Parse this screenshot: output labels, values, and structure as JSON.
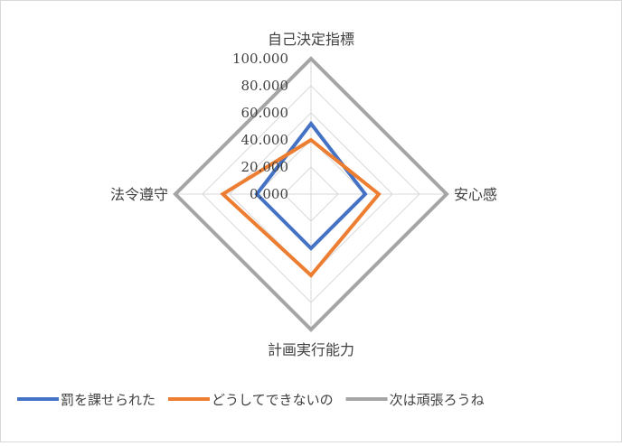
{
  "chart_data": {
    "type": "radar",
    "categories": [
      "自己決定指標",
      "安心感",
      "計画実行能力",
      "法令遵守"
    ],
    "r_ticks": [
      "100.000",
      "80.000",
      "60.000",
      "40.000",
      "20.000",
      "0.000"
    ],
    "rlim": [
      0,
      100
    ],
    "grid": true,
    "legend_position": "bottom",
    "series": [
      {
        "name": "罰を課せられた",
        "values": [
          52,
          40,
          40,
          40
        ],
        "color": "#4472c4"
      },
      {
        "name": "どうしてできないの",
        "values": [
          40,
          50,
          60,
          65
        ],
        "color": "#ed7d31"
      },
      {
        "name": "次は頑張ろうね",
        "values": [
          100,
          100,
          100,
          100
        ],
        "color": "#a5a5a5"
      }
    ]
  }
}
